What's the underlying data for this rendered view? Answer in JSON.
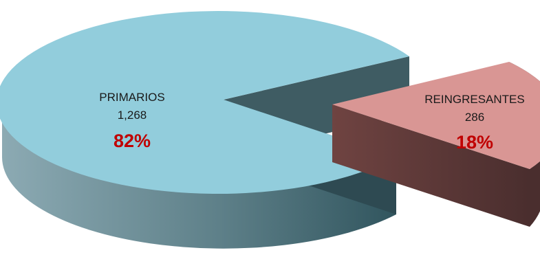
{
  "chart_data": {
    "type": "pie",
    "style": "3d-exploded",
    "slices": [
      {
        "label": "PRIMARIOS",
        "value_text": "1,268",
        "value": 1268,
        "percent_text": "82%",
        "percent": 82,
        "colors": {
          "top": "#92CDDC",
          "side_dark": "#31555E",
          "side_light": "#8CAAB3",
          "inner": "#3F5C63"
        }
      },
      {
        "label": "REINGRESANTES",
        "value_text": "286",
        "value": 286,
        "percent_text": "18%",
        "percent": 18,
        "colors": {
          "top": "#D99694",
          "side_dark": "#4A2E2E",
          "side_light": "#7A4A48",
          "inner": "#6A3E3C"
        }
      }
    ],
    "percent_color": "#C00000",
    "legend": "none"
  }
}
